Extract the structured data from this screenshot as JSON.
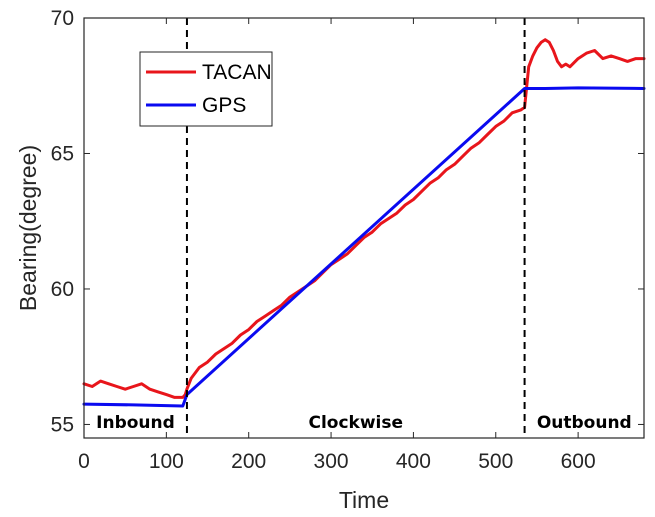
{
  "chart_data": {
    "type": "line",
    "title": "",
    "xlabel": "Time",
    "ylabel": "Bearing(degree)",
    "xlim": [
      0,
      680
    ],
    "ylim": [
      54.5,
      70
    ],
    "x_ticks": [
      0,
      100,
      200,
      300,
      400,
      500,
      600
    ],
    "y_ticks": [
      55,
      60,
      65,
      70
    ],
    "grid": false,
    "legend_position": "top-left",
    "series": [
      {
        "name": "TACAN",
        "color": "#e8151b",
        "x": [
          0,
          10,
          20,
          30,
          40,
          50,
          60,
          70,
          80,
          90,
          100,
          110,
          120,
          123,
          125,
          130,
          140,
          150,
          160,
          170,
          180,
          190,
          200,
          210,
          220,
          230,
          240,
          250,
          260,
          270,
          280,
          290,
          300,
          310,
          320,
          330,
          340,
          350,
          360,
          370,
          380,
          390,
          400,
          410,
          420,
          430,
          440,
          450,
          460,
          470,
          480,
          490,
          500,
          510,
          520,
          530,
          535,
          540,
          545,
          550,
          555,
          560,
          565,
          570,
          575,
          580,
          585,
          590,
          600,
          610,
          620,
          630,
          640,
          650,
          660,
          670,
          680
        ],
        "values": [
          56.5,
          56.4,
          56.6,
          56.5,
          56.4,
          56.3,
          56.4,
          56.5,
          56.3,
          56.2,
          56.1,
          56.0,
          56.0,
          56.1,
          56.3,
          56.7,
          57.1,
          57.3,
          57.6,
          57.8,
          58.0,
          58.3,
          58.5,
          58.8,
          59.0,
          59.2,
          59.4,
          59.7,
          59.9,
          60.1,
          60.3,
          60.6,
          60.9,
          61.1,
          61.3,
          61.6,
          61.9,
          62.1,
          62.4,
          62.6,
          62.8,
          63.1,
          63.3,
          63.6,
          63.9,
          64.1,
          64.4,
          64.6,
          64.9,
          65.2,
          65.4,
          65.7,
          66.0,
          66.2,
          66.5,
          66.6,
          66.7,
          68.2,
          68.6,
          68.9,
          69.1,
          69.2,
          69.1,
          68.8,
          68.4,
          68.2,
          68.3,
          68.2,
          68.5,
          68.7,
          68.8,
          68.5,
          68.6,
          68.5,
          68.4,
          68.5,
          68.5
        ]
      },
      {
        "name": "GPS",
        "color": "#0a0af0",
        "x": [
          0,
          60,
          120,
          125,
          535,
          560,
          600,
          680
        ],
        "values": [
          55.75,
          55.72,
          55.68,
          56.1,
          67.4,
          67.4,
          67.42,
          67.4
        ]
      }
    ],
    "phase_boundaries": [
      125,
      535
    ],
    "phase_labels": [
      "Inbound",
      "Clockwise",
      "Outbound"
    ]
  }
}
